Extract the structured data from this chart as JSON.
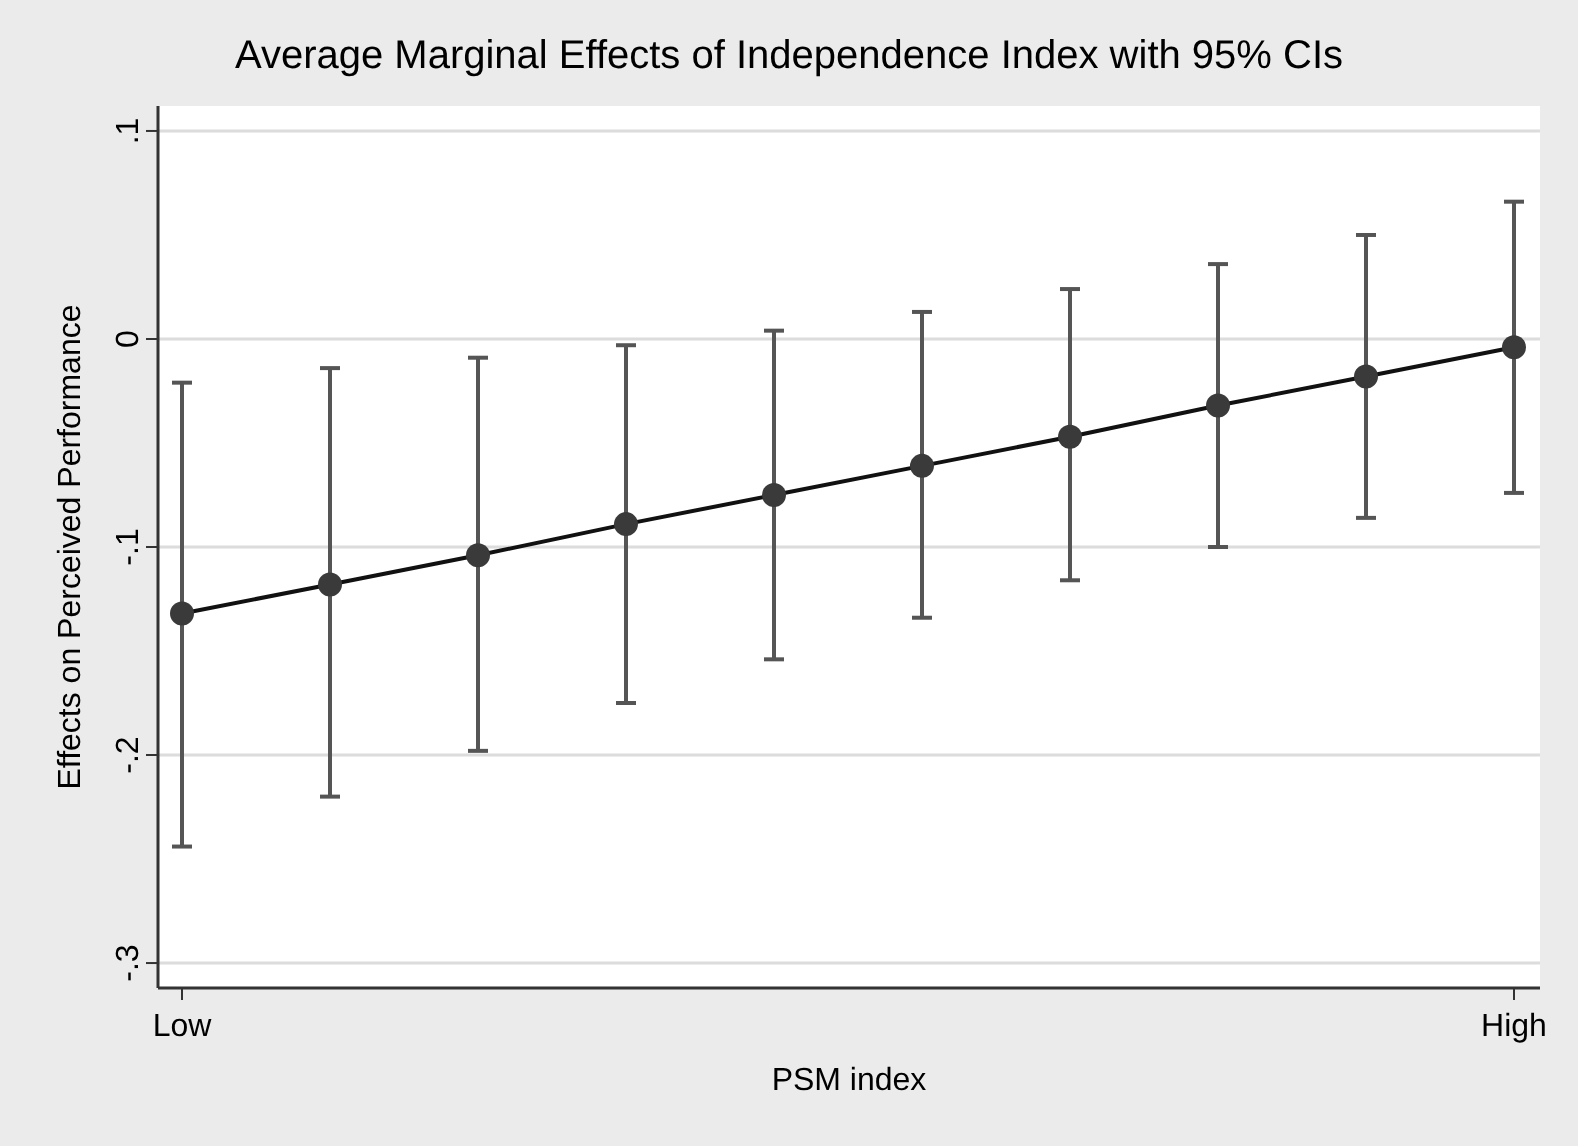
{
  "chart_data": {
    "type": "line",
    "title": "Average Marginal Effects of Independence Index with 95% CIs",
    "xlabel": "PSM index",
    "ylabel": "Effects on Perceived Performance",
    "categories": [
      "Low",
      null,
      null,
      null,
      null,
      null,
      null,
      null,
      null,
      "High"
    ],
    "series": [
      {
        "color": "#3a3a3a",
        "values": [
          -0.132,
          -0.118,
          -0.104,
          -0.089,
          -0.075,
          -0.061,
          -0.047,
          -0.032,
          -0.018,
          -0.004
        ],
        "errors": [
          [
            -0.244,
            -0.021
          ],
          [
            -0.22,
            -0.014
          ],
          [
            -0.198,
            -0.009
          ],
          [
            -0.175,
            -0.003
          ],
          [
            -0.154,
            0.004
          ],
          [
            -0.134,
            0.013
          ],
          [
            -0.116,
            0.024
          ],
          [
            -0.1,
            0.036
          ],
          [
            -0.086,
            0.05
          ],
          [
            -0.074,
            0.066
          ]
        ]
      }
    ],
    "ylim": [
      -0.312,
      0.112
    ],
    "yticks": [
      {
        "value": -0.3,
        "label": "-.3"
      },
      {
        "value": -0.2,
        "label": "-.2"
      },
      {
        "value": -0.1,
        "label": "-.1"
      },
      0,
      {
        "value": 0.1,
        "label": ".1"
      }
    ],
    "grid": "y",
    "marker": "circle",
    "line_style": "solid"
  }
}
